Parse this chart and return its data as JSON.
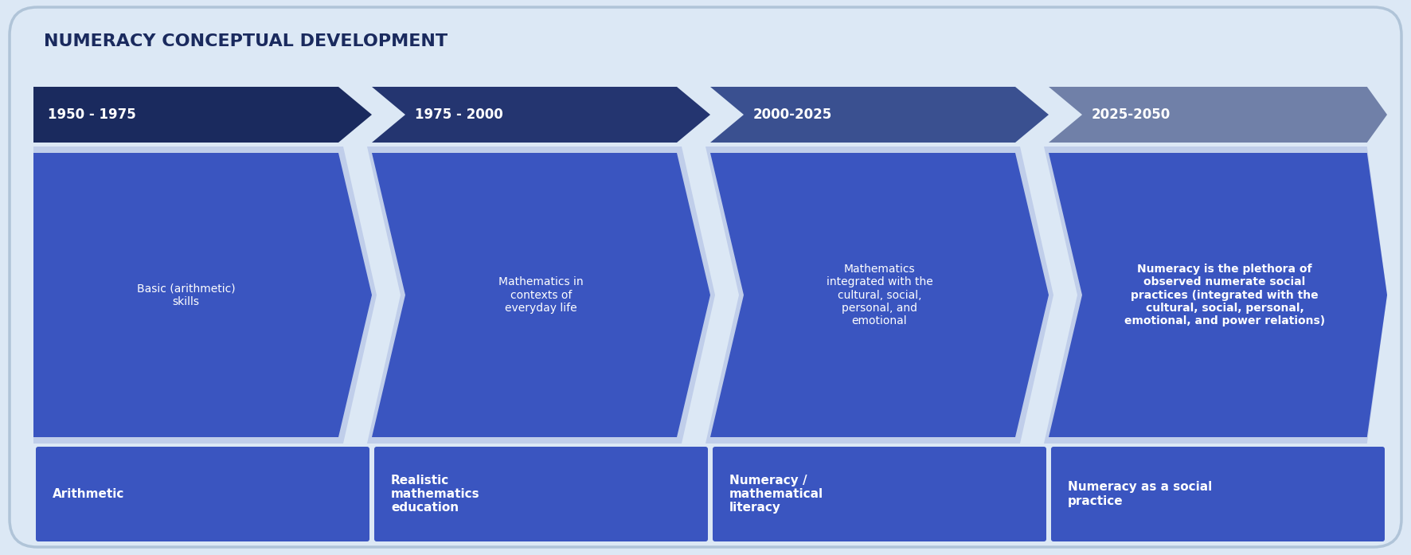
{
  "title": "NUMERACY CONCEPTUAL DEVELOPMENT",
  "background_color": "#dce8f5",
  "periods": [
    "1950 - 1975",
    "1975 - 2000",
    "2000-2025",
    "2025-2050"
  ],
  "period_colors": [
    "#1a2a5e",
    "#243570",
    "#3a5090",
    "#7080a8"
  ],
  "arrow_main_color": "#3a55c0",
  "arrow_light_color": "#c0ceea",
  "body_texts": [
    "Basic (arithmetic)\nskills",
    "Mathematics in\ncontexts of\neveryday life",
    "Mathematics\nintegrated with the\ncultural, social,\npersonal, and\nemotional",
    "Numeracy is the plethora of\nobserved numerate social\npractices (integrated with the\ncultural, social, personal,\nemotional, and power relations)"
  ],
  "bottom_labels": [
    "Arithmetic",
    "Realistic\nmathematics\neducation",
    "Numeracy /\nmathematical\nliteracy",
    "Numeracy as a social\npractice"
  ],
  "box_color": "#3a55c0",
  "text_color": "#ffffff",
  "title_color": "#1a2a5e",
  "border_color": "#b0c4d8"
}
